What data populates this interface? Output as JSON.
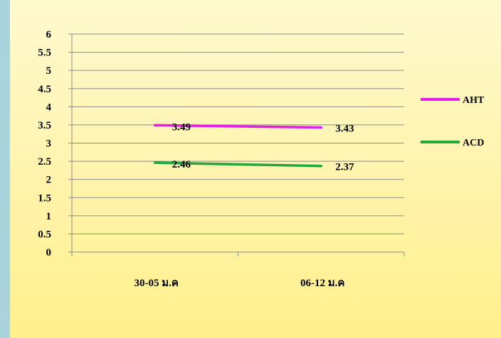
{
  "chart_data": {
    "type": "line",
    "categories": [
      "30-05 ม.ค",
      "06-12 ม.ค"
    ],
    "series": [
      {
        "name": "AHT",
        "values": [
          3.49,
          3.43
        ],
        "labels": [
          "3.49",
          "3.43"
        ],
        "color": "#e41ee4"
      },
      {
        "name": "ACD",
        "values": [
          2.46,
          2.37
        ],
        "labels": [
          "2.46",
          "2.37"
        ],
        "color": "#23a63a"
      }
    ],
    "ylim": [
      0,
      6
    ],
    "yticks": [
      "0",
      "0.5",
      "1",
      "1.5",
      "2",
      "2.5",
      "3",
      "3.5",
      "4",
      "4.5",
      "5",
      "5.5",
      "6"
    ],
    "grid": true,
    "legend_position": "right"
  }
}
